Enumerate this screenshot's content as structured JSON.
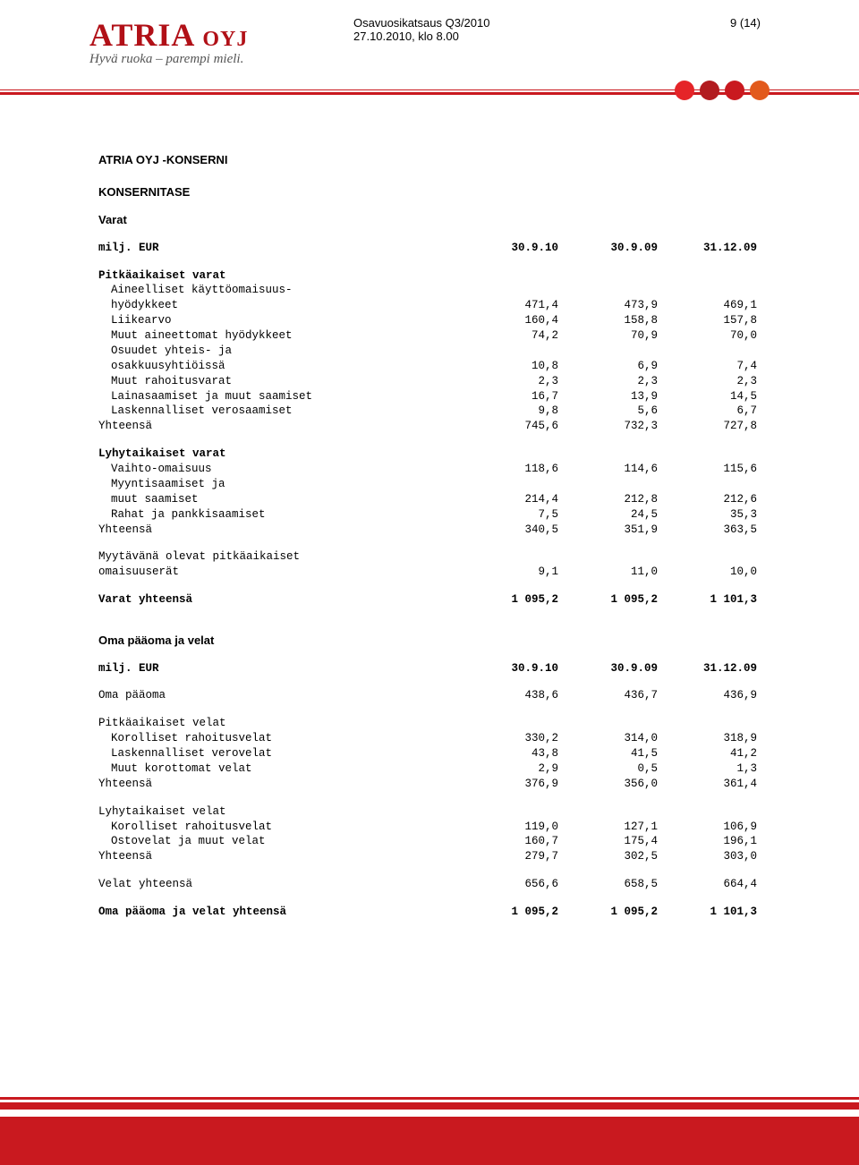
{
  "header": {
    "logo_text": "ATRIA",
    "logo_suffix": "OYJ",
    "tagline": "Hyvä ruoka – parempi mieli.",
    "doc_title_line1": "Osavuosikatsaus Q3/2010",
    "doc_title_line2": "27.10.2010, klo 8.00",
    "page_num": "9 (14)",
    "dot_colors": [
      "#e52428",
      "#b21b1f",
      "#c9191f",
      "#e25a1c"
    ]
  },
  "body": {
    "main_heading": "ATRIA OYJ -KONSERNI",
    "section1_title": "KONSERNITASE",
    "section1_sub": "Varat",
    "col_header": "milj. EUR",
    "cols": [
      "30.9.10",
      "30.9.09",
      "31.12.09"
    ],
    "group1_title": "Pitkäaikaiset varat",
    "group1": [
      {
        "label": "Aineelliset käyttöomaisuus-",
        "v": [
          "",
          "",
          ""
        ]
      },
      {
        "label": "hyödykkeet",
        "v": [
          "471,4",
          "473,9",
          "469,1"
        ]
      },
      {
        "label": "Liikearvo",
        "v": [
          "160,4",
          "158,8",
          "157,8"
        ]
      },
      {
        "label": "Muut aineettomat hyödykkeet",
        "v": [
          "74,2",
          "70,9",
          "70,0"
        ]
      },
      {
        "label": "Osuudet yhteis- ja",
        "v": [
          "",
          "",
          ""
        ]
      },
      {
        "label": "osakkuusyhtiöissä",
        "v": [
          "10,8",
          "6,9",
          "7,4"
        ]
      },
      {
        "label": "Muut rahoitusvarat",
        "v": [
          "2,3",
          "2,3",
          "2,3"
        ]
      },
      {
        "label": "Lainasaamiset ja muut saamiset",
        "v": [
          "16,7",
          "13,9",
          "14,5"
        ]
      },
      {
        "label": "Laskennalliset verosaamiset",
        "v": [
          "9,8",
          "5,6",
          "6,7"
        ]
      }
    ],
    "group1_total": {
      "label": "Yhteensä",
      "v": [
        "745,6",
        "732,3",
        "727,8"
      ]
    },
    "group2_title": "Lyhytaikaiset varat",
    "group2": [
      {
        "label": "Vaihto-omaisuus",
        "v": [
          "118,6",
          "114,6",
          "115,6"
        ]
      },
      {
        "label": "Myyntisaamiset ja",
        "v": [
          "",
          "",
          ""
        ]
      },
      {
        "label": "muut saamiset",
        "v": [
          "214,4",
          "212,8",
          "212,6"
        ]
      },
      {
        "label": "Rahat ja pankkisaamiset",
        "v": [
          "7,5",
          "24,5",
          "35,3"
        ]
      }
    ],
    "group2_total": {
      "label": "Yhteensä",
      "v": [
        "340,5",
        "351,9",
        "363,5"
      ]
    },
    "group3_label1": "Myytävänä olevat pitkäaikaiset",
    "group3_label2": "omaisuuserät",
    "group3_v": [
      "9,1",
      "11,0",
      "10,0"
    ],
    "assets_total": {
      "label": "Varat yhteensä",
      "v": [
        "1 095,2",
        "1 095,2",
        "1 101,3"
      ]
    },
    "section2_title": "Oma pääoma ja velat",
    "equity": {
      "label": "Oma pääoma",
      "v": [
        "438,6",
        "436,7",
        "436,9"
      ]
    },
    "liab1_title": "Pitkäaikaiset velat",
    "liab1": [
      {
        "label": "Korolliset rahoitusvelat",
        "v": [
          "330,2",
          "314,0",
          "318,9"
        ]
      },
      {
        "label": "Laskennalliset verovelat",
        "v": [
          "43,8",
          "41,5",
          "41,2"
        ]
      },
      {
        "label": "Muut korottomat velat",
        "v": [
          "2,9",
          "0,5",
          "1,3"
        ]
      }
    ],
    "liab1_total": {
      "label": "Yhteensä",
      "v": [
        "376,9",
        "356,0",
        "361,4"
      ]
    },
    "liab2_title": "Lyhytaikaiset velat",
    "liab2": [
      {
        "label": "Korolliset rahoitusvelat",
        "v": [
          "119,0",
          "127,1",
          "106,9"
        ]
      },
      {
        "label": "Ostovelat ja muut velat",
        "v": [
          "160,7",
          "175,4",
          "196,1"
        ]
      }
    ],
    "liab2_total": {
      "label": "Yhteensä",
      "v": [
        "279,7",
        "302,5",
        "303,0"
      ]
    },
    "liab_total": {
      "label": "Velat yhteensä",
      "v": [
        "656,6",
        "658,5",
        "664,4"
      ]
    },
    "grand_total": {
      "label": "Oma pääoma ja velat yhteensä",
      "v": [
        "1 095,2",
        "1 095,2",
        "1 101,3"
      ]
    }
  }
}
